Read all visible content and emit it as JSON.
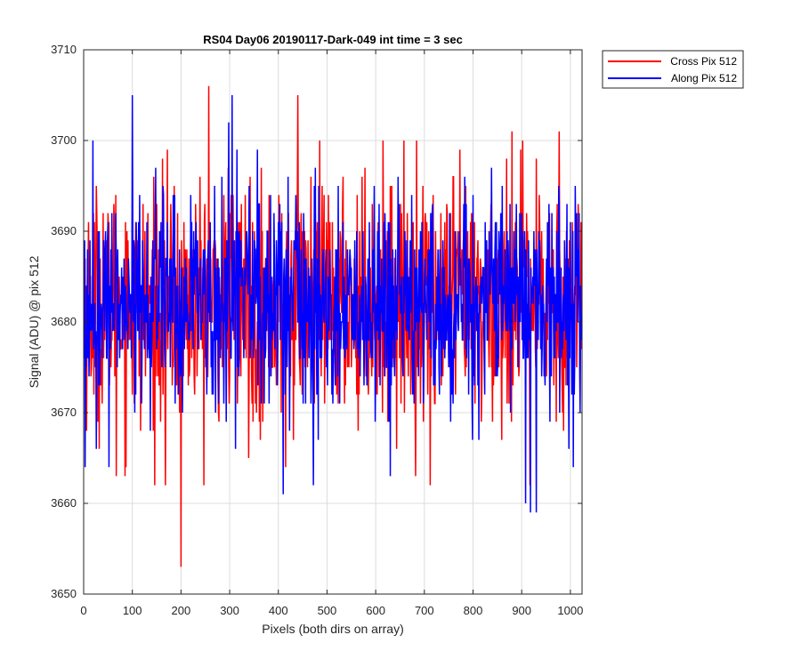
{
  "chart_data": {
    "type": "line",
    "title": "RS04 Day06 20190117-Dark-049 int time = 3 sec",
    "xlabel": "Pixels (both dirs on array)",
    "ylabel": "Signal (ADU) @ pix 512",
    "xlim": [
      0,
      1024
    ],
    "ylim": [
      3650,
      3710
    ],
    "xticks": [
      0,
      100,
      200,
      300,
      400,
      500,
      600,
      700,
      800,
      900,
      1000
    ],
    "yticks": [
      3650,
      3660,
      3670,
      3680,
      3690,
      3700,
      3710
    ],
    "grid": true,
    "legend_position": "outside top-right",
    "n_points": 1024,
    "series": [
      {
        "name": "Cross Pix 512",
        "color": "#ff0000",
        "noise": {
          "mean": 3682,
          "sd": 6.5,
          "min": 3662,
          "max": 3700
        },
        "extremes": [
          {
            "x": 200,
            "y": 3653
          },
          {
            "x": 257,
            "y": 3706
          },
          {
            "x": 440,
            "y": 3705
          },
          {
            "x": 168,
            "y": 3662
          },
          {
            "x": 67,
            "y": 3663
          },
          {
            "x": 415,
            "y": 3664
          },
          {
            "x": 712,
            "y": 3662
          },
          {
            "x": 917,
            "y": 3662
          },
          {
            "x": 977,
            "y": 3701
          },
          {
            "x": 880,
            "y": 3701
          }
        ]
      },
      {
        "name": "Along Pix 512",
        "color": "#0000ff",
        "noise": {
          "mean": 3682,
          "sd": 6.0,
          "min": 3663,
          "max": 3699
        },
        "extremes": [
          {
            "x": 100,
            "y": 3705
          },
          {
            "x": 305,
            "y": 3705
          },
          {
            "x": 298,
            "y": 3702
          },
          {
            "x": 19,
            "y": 3700
          },
          {
            "x": 918,
            "y": 3659
          },
          {
            "x": 930,
            "y": 3659
          },
          {
            "x": 410,
            "y": 3661
          },
          {
            "x": 908,
            "y": 3660
          },
          {
            "x": 472,
            "y": 3662
          },
          {
            "x": 1006,
            "y": 3664
          }
        ]
      }
    ]
  }
}
